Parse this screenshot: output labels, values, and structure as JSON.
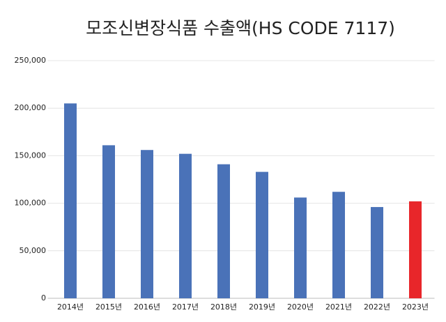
{
  "chart_data": {
    "type": "bar",
    "title": "모조신변장식품 수출액(HS CODE 7117)",
    "categories": [
      "2014년",
      "2015년",
      "2016년",
      "2017년",
      "2018년",
      "2019년",
      "2020년",
      "2021년",
      "2022년",
      "2023년"
    ],
    "values": [
      205000,
      161000,
      156000,
      152000,
      141000,
      133000,
      106000,
      112000,
      96000,
      102000
    ],
    "colors": [
      "#4a72b8",
      "#4a72b8",
      "#4a72b8",
      "#4a72b8",
      "#4a72b8",
      "#4a72b8",
      "#4a72b8",
      "#4a72b8",
      "#4a72b8",
      "#e8262a"
    ],
    "ylim": [
      0,
      250000
    ],
    "yticks": [
      0,
      {
        "value": 50000,
        "label": "50,000"
      },
      {
        "value": 100000,
        "label": "100,000"
      },
      {
        "value": 150000,
        "label": "150,000"
      },
      {
        "value": 200000,
        "label": "200,000"
      },
      {
        "value": 250000,
        "label": "250,000"
      }
    ],
    "grid": true
  }
}
